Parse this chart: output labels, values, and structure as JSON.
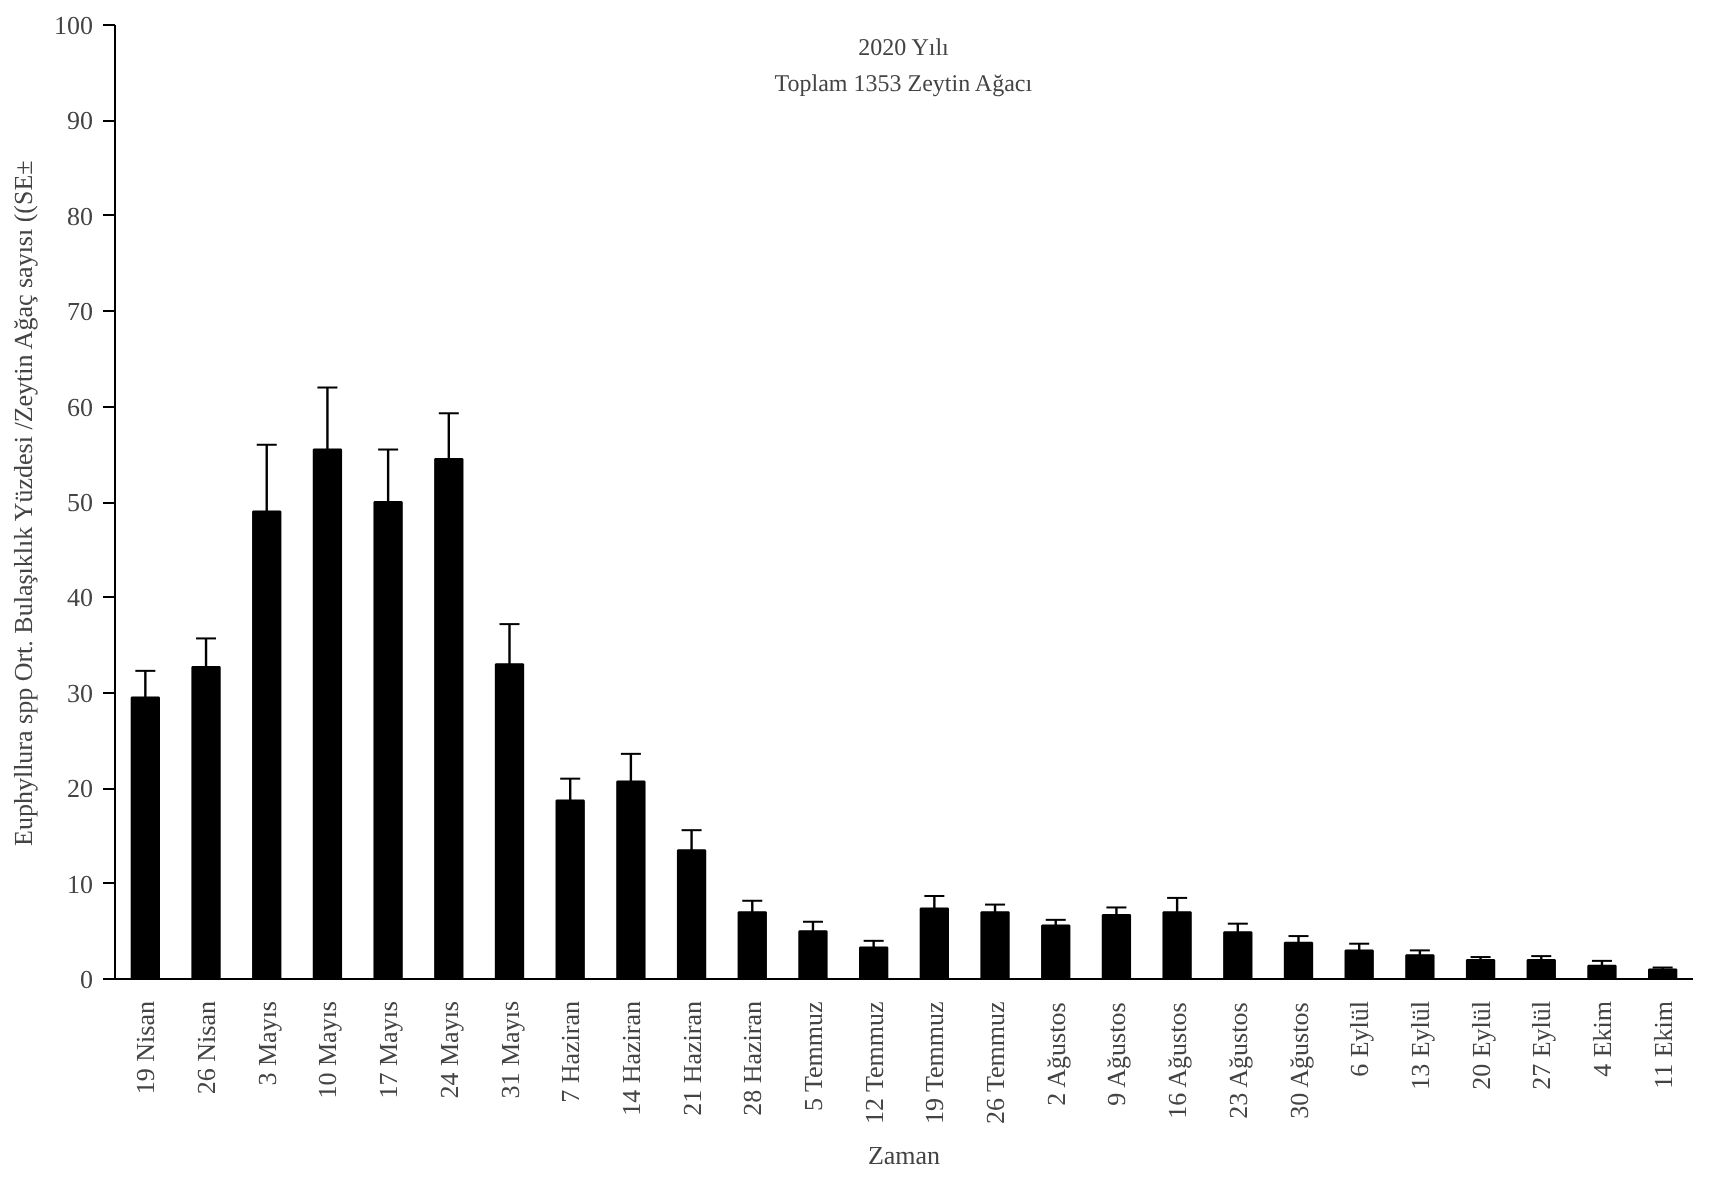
{
  "chart_data": {
    "type": "bar",
    "title": "2020 Yılı",
    "subtitle": "Toplam 1353 Zeytin Ağacı",
    "xlabel": "Zaman",
    "ylabel": "Euphyllura spp Ort. Bulaşıklık Yüzdesi /Zeytin Ağaç sayısı ((SE±",
    "categories": [
      "19 Nisan",
      "26 Nisan",
      "3 Mayıs",
      "10 Mayıs",
      "17 Mayıs",
      "24 Mayıs",
      "31 Mayıs",
      "7 Haziran",
      "14 Haziran",
      "21 Haziran",
      "28 Haziran",
      "5 Temmuz",
      "12 Temmuz",
      "19 Temmuz",
      "26 Temmuz",
      "2 Ağustos",
      "9 Ağustos",
      "16 Ağustos",
      "23 Ağustos",
      "30 Ağustos",
      "6 Eylül",
      "13 Eylül",
      "20 Eylül",
      "27 Eylül",
      "4 Ekim",
      "11 Ekim"
    ],
    "values": [
      29.5,
      32.7,
      49,
      55.5,
      50,
      54.5,
      33,
      18.7,
      20.7,
      13.5,
      7,
      5,
      3.3,
      7.4,
      7,
      5.6,
      6.7,
      7,
      4.9,
      3.8,
      3,
      2.5,
      2,
      2,
      1.4,
      1
    ],
    "errors": [
      [
        29.5,
        32.3
      ],
      [
        32.7,
        35.7
      ],
      [
        49,
        56
      ],
      [
        55.5,
        62
      ],
      [
        50,
        55.5
      ],
      [
        54.5,
        59.3
      ],
      [
        33,
        37.2
      ],
      [
        18.7,
        21
      ],
      [
        20.7,
        23.6
      ],
      [
        13.5,
        15.6
      ],
      [
        7,
        8.2
      ],
      [
        5,
        6
      ],
      [
        3.3,
        4
      ],
      [
        7.4,
        8.7
      ],
      [
        7,
        7.8
      ],
      [
        5.6,
        6.2
      ],
      [
        6.7,
        7.5
      ],
      [
        7,
        8.5
      ],
      [
        4.9,
        5.8
      ],
      [
        3.8,
        4.5
      ],
      [
        3,
        3.7
      ],
      [
        2.5,
        3
      ],
      [
        2,
        2.3
      ],
      [
        2,
        2.4
      ],
      [
        1.4,
        1.9
      ],
      [
        1,
        1.2
      ]
    ],
    "color": "#000000",
    "ylim": [
      0,
      100
    ],
    "yticks": [
      0,
      10,
      20,
      30,
      40,
      50,
      60,
      70,
      80,
      90,
      100
    ],
    "grid": false
  }
}
